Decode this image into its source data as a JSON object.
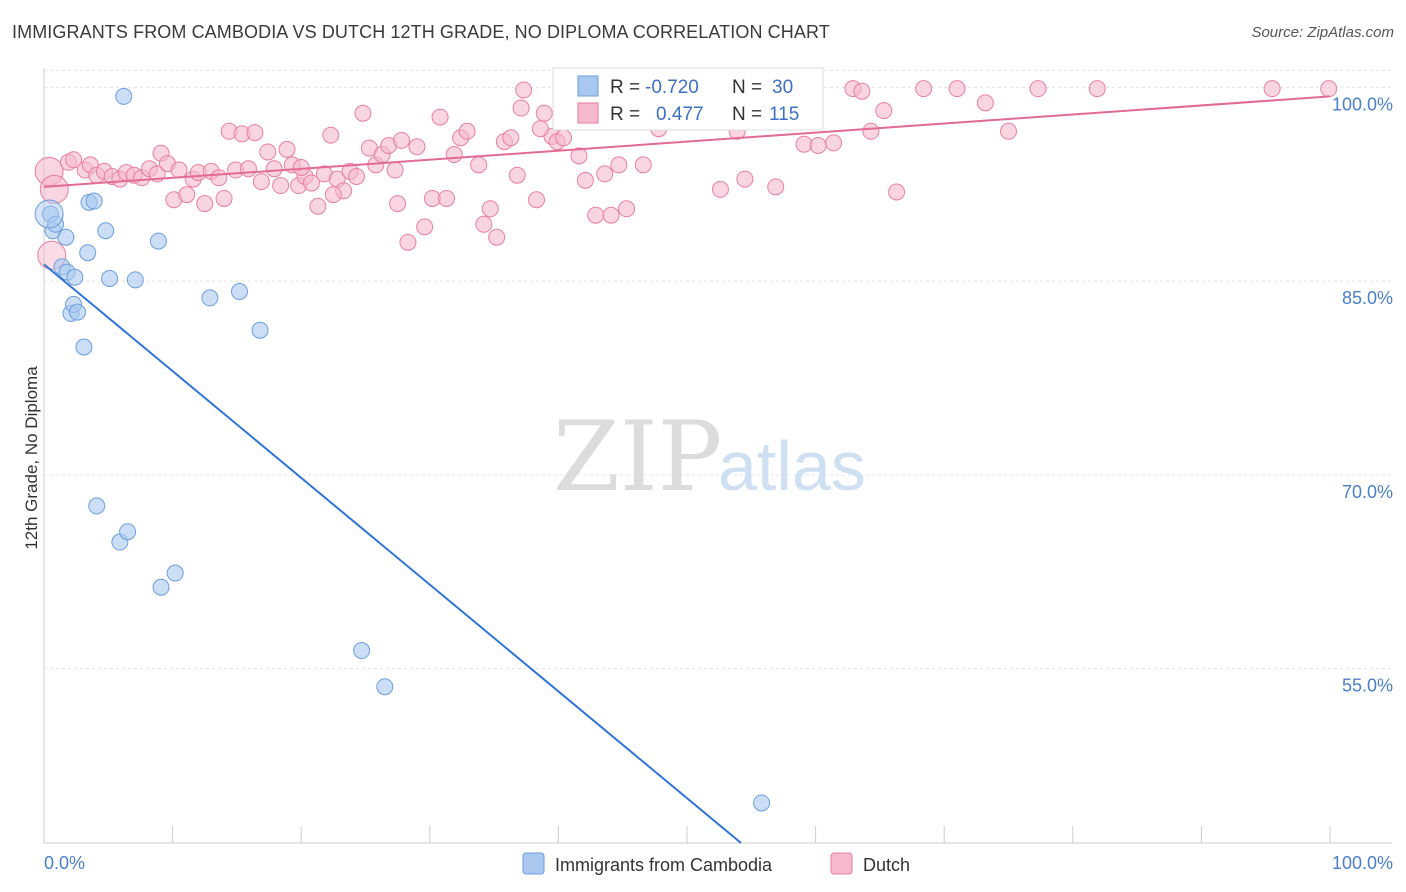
{
  "title": "IMMIGRANTS FROM CAMBODIA VS DUTCH 12TH GRADE, NO DIPLOMA CORRELATION CHART",
  "source": "Source: ZipAtlas.com",
  "watermark": {
    "zip": "ZIP",
    "atlas": "atlas"
  },
  "colors": {
    "blue": "#6b9ee0",
    "blue_fill": "#a9c8ef",
    "blue_line": "#2f74d6",
    "pink": "#e8809f",
    "pink_fill": "#f5b9cb",
    "pink_line": "#e26b93",
    "grid": "#e3e3e3",
    "tick_text": "#4a7fc9"
  },
  "legend_stats": {
    "r_label": "R =",
    "n_label": "N =",
    "rows": [
      {
        "r": "-0.720",
        "n": "30",
        "color": "blue"
      },
      {
        "r": "0.477",
        "n": "115",
        "color": "pink"
      }
    ]
  },
  "chart_data": {
    "type": "scatter",
    "title": "IMMIGRANTS FROM CAMBODIA VS DUTCH 12TH GRADE, NO DIPLOMA CORRELATION CHART",
    "xlabel": "",
    "ylabel": "12th Grade, No Diploma",
    "xlim": [
      0,
      100
    ],
    "ylim": [
      41.5,
      101.5
    ],
    "x_tick_labels": [
      "0.0%",
      "100.0%"
    ],
    "y_ticks": [
      55.0,
      70.0,
      85.0,
      100.0
    ],
    "y_tick_labels": [
      "55.0%",
      "70.0%",
      "85.0%",
      "100.0%"
    ],
    "grid": true,
    "legend_position": "bottom",
    "series": [
      {
        "name": "Immigrants from Cambodia",
        "color": "blue",
        "trend": {
          "x": [
            0.0,
            54.2
          ],
          "y": [
            86.3,
            41.5
          ]
        },
        "points": [
          [
            0.5,
            90.2
          ],
          [
            0.7,
            88.9
          ],
          [
            0.9,
            89.4
          ],
          [
            1.4,
            86.1
          ],
          [
            1.7,
            88.4
          ],
          [
            1.8,
            85.7
          ],
          [
            2.1,
            82.5
          ],
          [
            2.3,
            83.2
          ],
          [
            2.4,
            85.3
          ],
          [
            2.6,
            82.6
          ],
          [
            3.1,
            79.9
          ],
          [
            3.4,
            87.2
          ],
          [
            3.5,
            91.1
          ],
          [
            3.9,
            91.2
          ],
          [
            4.8,
            88.9
          ],
          [
            5.1,
            85.2
          ],
          [
            6.2,
            99.3
          ],
          [
            7.1,
            85.1
          ],
          [
            8.9,
            88.1
          ],
          [
            12.9,
            83.7
          ],
          [
            15.2,
            84.2
          ],
          [
            16.8,
            81.2
          ],
          [
            4.1,
            67.6
          ],
          [
            5.9,
            64.8
          ],
          [
            6.5,
            65.6
          ],
          [
            9.1,
            61.3
          ],
          [
            10.2,
            62.4
          ],
          [
            24.7,
            56.4
          ],
          [
            26.5,
            53.6
          ],
          [
            55.8,
            44.6
          ]
        ]
      },
      {
        "name": "Dutch",
        "color": "pink",
        "trend": {
          "x": [
            0.0,
            100.0
          ],
          "y": [
            92.3,
            99.3
          ]
        },
        "points": [
          [
            0.4,
            93.5
          ],
          [
            0.8,
            92.1
          ],
          [
            1.9,
            94.2
          ],
          [
            2.3,
            94.4
          ],
          [
            3.2,
            93.6
          ],
          [
            3.6,
            94.0
          ],
          [
            4.1,
            93.2
          ],
          [
            4.7,
            93.5
          ],
          [
            5.3,
            93.1
          ],
          [
            5.9,
            92.9
          ],
          [
            6.4,
            93.4
          ],
          [
            7.0,
            93.2
          ],
          [
            7.6,
            93.0
          ],
          [
            8.2,
            93.7
          ],
          [
            8.8,
            93.3
          ],
          [
            9.1,
            94.9
          ],
          [
            9.6,
            94.1
          ],
          [
            10.1,
            91.3
          ],
          [
            10.5,
            93.6
          ],
          [
            11.1,
            91.7
          ],
          [
            11.6,
            92.9
          ],
          [
            12.0,
            93.4
          ],
          [
            12.5,
            91.0
          ],
          [
            13.0,
            93.5
          ],
          [
            13.6,
            93.0
          ],
          [
            14.0,
            91.4
          ],
          [
            14.4,
            96.6
          ],
          [
            14.9,
            93.6
          ],
          [
            15.4,
            96.4
          ],
          [
            15.9,
            93.7
          ],
          [
            16.4,
            96.5
          ],
          [
            16.9,
            92.7
          ],
          [
            17.4,
            95.0
          ],
          [
            17.9,
            93.7
          ],
          [
            18.4,
            92.4
          ],
          [
            18.9,
            95.2
          ],
          [
            19.3,
            94.0
          ],
          [
            19.8,
            92.4
          ],
          [
            20.3,
            93.1
          ],
          [
            20.8,
            92.6
          ],
          [
            21.3,
            90.8
          ],
          [
            21.8,
            93.3
          ],
          [
            22.3,
            96.3
          ],
          [
            22.8,
            92.9
          ],
          [
            23.3,
            92.0
          ],
          [
            23.8,
            93.5
          ],
          [
            24.3,
            93.1
          ],
          [
            24.8,
            98.0
          ],
          [
            25.3,
            95.3
          ],
          [
            25.8,
            94.0
          ],
          [
            26.3,
            94.8
          ],
          [
            26.8,
            95.5
          ],
          [
            27.3,
            93.6
          ],
          [
            27.8,
            95.9
          ],
          [
            28.3,
            88.0
          ],
          [
            29.0,
            95.4
          ],
          [
            29.6,
            89.2
          ],
          [
            30.2,
            91.4
          ],
          [
            30.8,
            97.7
          ],
          [
            31.3,
            91.4
          ],
          [
            31.9,
            94.8
          ],
          [
            32.4,
            96.1
          ],
          [
            32.9,
            96.6
          ],
          [
            33.8,
            94.0
          ],
          [
            34.2,
            89.4
          ],
          [
            34.7,
            90.6
          ],
          [
            35.2,
            88.4
          ],
          [
            35.8,
            95.8
          ],
          [
            36.3,
            96.1
          ],
          [
            36.8,
            93.2
          ],
          [
            37.3,
            99.8
          ],
          [
            38.3,
            91.3
          ],
          [
            38.9,
            98.0
          ],
          [
            39.5,
            96.2
          ],
          [
            39.9,
            95.8
          ],
          [
            40.4,
            96.1
          ],
          [
            41.1,
            98.4
          ],
          [
            41.6,
            94.7
          ],
          [
            42.1,
            92.8
          ],
          [
            42.9,
            90.1
          ],
          [
            43.6,
            93.3
          ],
          [
            44.1,
            90.1
          ],
          [
            44.7,
            94.0
          ],
          [
            45.3,
            90.6
          ],
          [
            46.6,
            94.0
          ],
          [
            47.8,
            96.8
          ],
          [
            49.0,
            98.9
          ],
          [
            50.3,
            98.6
          ],
          [
            51.5,
            97.8
          ],
          [
            52.6,
            92.1
          ],
          [
            53.9,
            96.6
          ],
          [
            54.5,
            92.9
          ],
          [
            56.9,
            92.3
          ],
          [
            57.9,
            98.9
          ],
          [
            59.1,
            95.6
          ],
          [
            60.2,
            95.5
          ],
          [
            61.4,
            95.7
          ],
          [
            62.9,
            99.9
          ],
          [
            63.6,
            99.7
          ],
          [
            64.3,
            96.6
          ],
          [
            65.3,
            98.2
          ],
          [
            66.3,
            91.9
          ],
          [
            68.4,
            99.9
          ],
          [
            71.0,
            99.9
          ],
          [
            73.2,
            98.8
          ],
          [
            75.0,
            96.6
          ],
          [
            77.3,
            99.9
          ],
          [
            81.9,
            99.9
          ],
          [
            95.5,
            99.9
          ],
          [
            99.9,
            99.9
          ],
          [
            37.1,
            98.4
          ],
          [
            38.6,
            96.8
          ],
          [
            20.0,
            93.8
          ],
          [
            22.5,
            91.7
          ],
          [
            27.5,
            91.0
          ]
        ]
      }
    ]
  }
}
